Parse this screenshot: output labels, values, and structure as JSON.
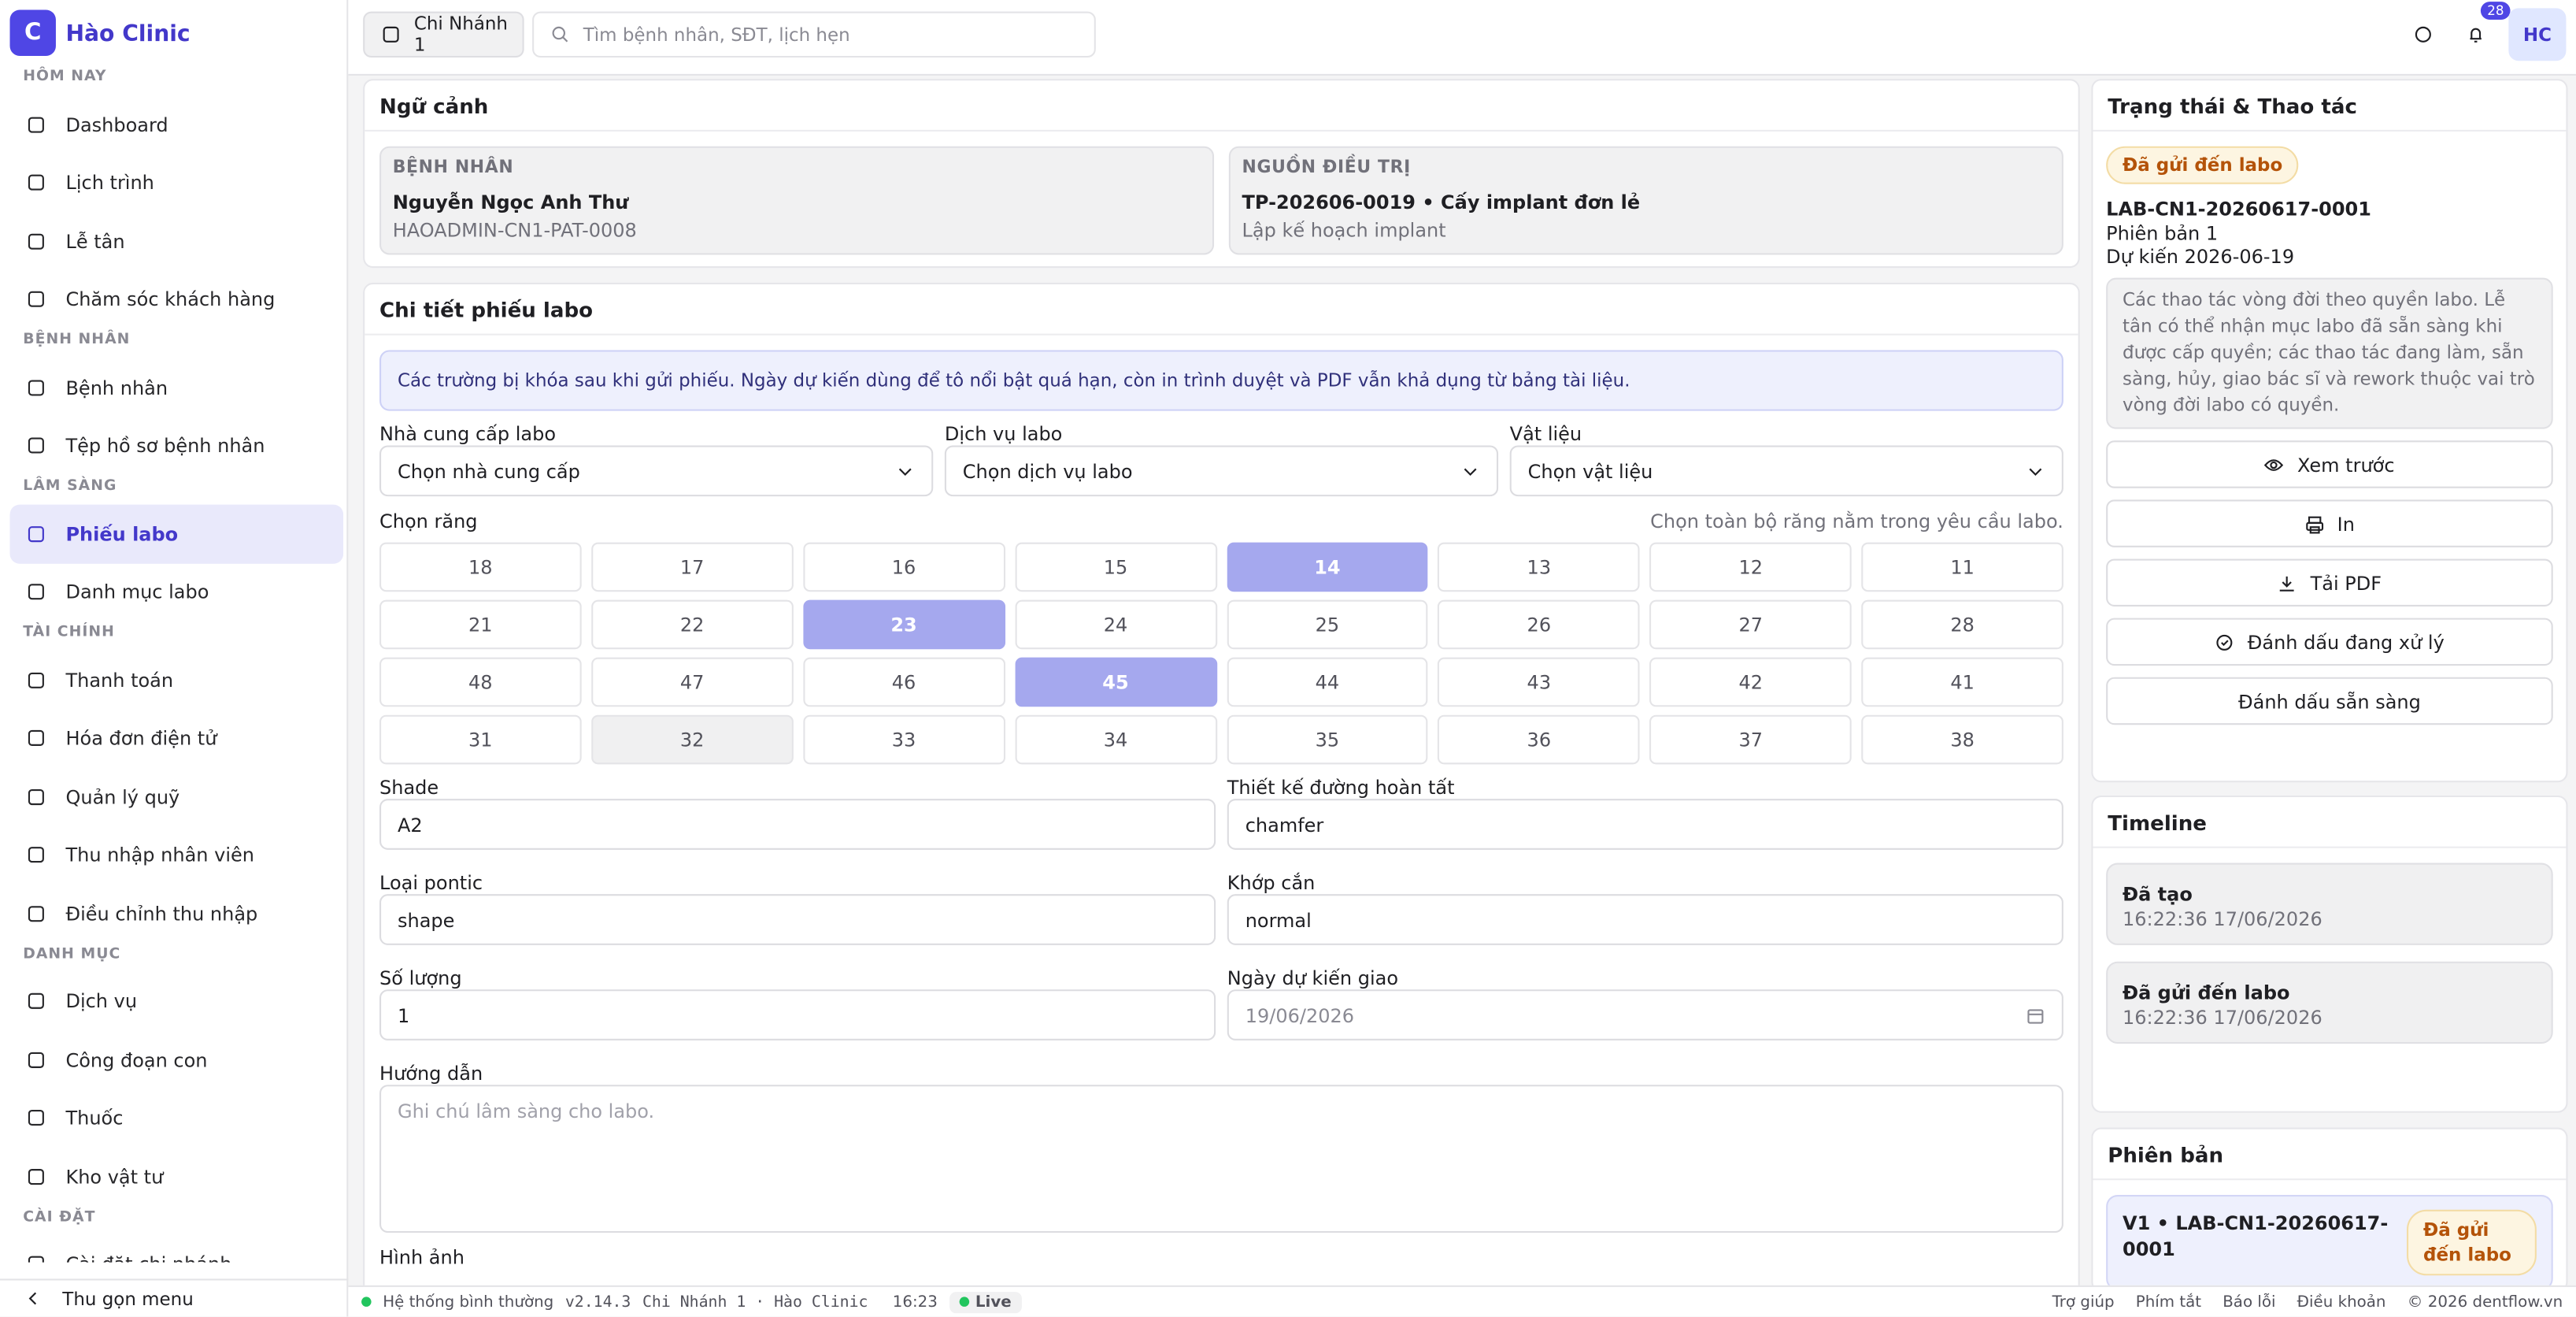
{
  "sidebar": {
    "logo": "C",
    "brand": "Hào Clinic",
    "groups": [
      {
        "title": "HÔM NAY",
        "items": [
          {
            "label": "Dashboard"
          },
          {
            "label": "Lịch trình"
          },
          {
            "label": "Lễ tân"
          },
          {
            "label": "Chăm sóc khách hàng"
          }
        ]
      },
      {
        "title": "BỆNH NHÂN",
        "items": [
          {
            "label": "Bệnh nhân"
          },
          {
            "label": "Tệp hồ sơ bệnh nhân"
          }
        ]
      },
      {
        "title": "LÂM SÀNG",
        "items": [
          {
            "label": "Phiếu labo",
            "active": true
          },
          {
            "label": "Danh mục labo"
          }
        ]
      },
      {
        "title": "TÀI CHÍNH",
        "items": [
          {
            "label": "Thanh toán"
          },
          {
            "label": "Hóa đơn điện tử"
          },
          {
            "label": "Quản lý quỹ"
          },
          {
            "label": "Thu nhập nhân viên"
          },
          {
            "label": "Điều chỉnh thu nhập"
          }
        ]
      },
      {
        "title": "DANH MỤC",
        "items": [
          {
            "label": "Dịch vụ"
          },
          {
            "label": "Công đoạn con"
          },
          {
            "label": "Thuốc"
          },
          {
            "label": "Kho vật tư"
          }
        ]
      },
      {
        "title": "CÀI ĐẶT",
        "items": [
          {
            "label": "Cài đặt chi nhánh"
          }
        ]
      }
    ],
    "collapse": "Thu gọn menu"
  },
  "topbar": {
    "branch": "Chi Nhánh 1",
    "search_placeholder": "Tìm bệnh nhân, SĐT, lịch hẹn",
    "notification_count": 28,
    "avatar": "HC"
  },
  "context": {
    "title": "Ngữ cảnh",
    "patient": {
      "label": "BỆNH NHÂN",
      "name": "Nguyễn Ngọc Anh Thư",
      "code": "HAOADMIN-CN1-PAT-0008"
    },
    "source": {
      "label": "NGUỒN ĐIỀU TRỊ",
      "name": "TP-202606-0019 • Cấy implant đơn lẻ",
      "sub": "Lập kế hoạch implant"
    }
  },
  "detail": {
    "title": "Chi tiết phiếu labo",
    "notice": "Các trường bị khóa sau khi gửi phiếu. Ngày dự kiến dùng để tô nổi bật quá hạn, còn in trình duyệt và PDF vẫn khả dụng từ bảng tài liệu.",
    "selects": [
      {
        "label": "Nhà cung cấp labo",
        "value": "Chọn nhà cung cấp"
      },
      {
        "label": "Dịch vụ labo",
        "value": "Chọn dịch vụ labo"
      },
      {
        "label": "Vật liệu",
        "value": "Chọn vật liệu"
      }
    ],
    "teeth": {
      "label": "Chọn răng",
      "hint": "Chọn toàn bộ răng nằm trong yêu cầu labo.",
      "rows": [
        [
          18,
          17,
          16,
          15,
          14,
          13,
          12,
          11
        ],
        [
          21,
          22,
          23,
          24,
          25,
          26,
          27,
          28
        ],
        [
          48,
          47,
          46,
          45,
          44,
          43,
          42,
          41
        ],
        [
          31,
          32,
          33,
          34,
          35,
          36,
          37,
          38
        ]
      ],
      "selected": [
        14,
        23,
        45
      ],
      "disabled": [
        32
      ]
    },
    "fields": [
      {
        "label": "Shade",
        "value": "A2"
      },
      {
        "label": "Thiết kế đường hoàn tất",
        "value": "chamfer"
      },
      {
        "label": "Loại pontic",
        "value": "shape"
      },
      {
        "label": "Khớp cắn",
        "value": "normal"
      },
      {
        "label": "Số lượng",
        "value": "1"
      },
      {
        "label": "Ngày dự kiến giao",
        "value": "19/06/2026",
        "disabled": true
      }
    ],
    "instructions": {
      "label": "Hướng dẫn",
      "placeholder": "Ghi chú lâm sàng cho labo."
    },
    "images_label": "Hình ảnh"
  },
  "status": {
    "title": "Trạng thái & Thao tác",
    "badge": "Đã gửi đến labo",
    "code": "LAB-CN1-20260617-0001",
    "version": "Phiên bản 1",
    "due": "Dự kiến 2026-06-19",
    "info": "Các thao tác vòng đời theo quyền labo. Lễ tân có thể nhận mục labo đã sẵn sàng khi được cấp quyền; các thao tác đang làm, sẵn sàng, hủy, giao bác sĩ và rework thuộc vai trò vòng đời labo có quyền.",
    "actions": [
      "Xem trước",
      "In",
      "Tải PDF",
      "Đánh dấu đang xử lý",
      "Đánh dấu sẵn sàng"
    ]
  },
  "timeline": {
    "title": "Timeline",
    "items": [
      {
        "label": "Đã tạo",
        "time": "16:22:36 17/06/2026"
      },
      {
        "label": "Đã gửi đến labo",
        "time": "16:22:36 17/06/2026"
      }
    ]
  },
  "versions": {
    "title": "Phiên bản",
    "items": [
      {
        "label": "V1 • LAB-CN1-20260617-0001",
        "badge": "Đã gửi đến labo"
      }
    ]
  },
  "footer": {
    "status": "Hệ thống bình thường",
    "version": "v2.14.3",
    "branch": "Chi Nhánh 1 · Hào Clinic",
    "time": "16:23",
    "live": "Live",
    "links": [
      "Trợ giúp",
      "Phím tắt",
      "Báo lỗi",
      "Điều khoản"
    ],
    "copyright": "© 2026 dentflow.vn"
  }
}
